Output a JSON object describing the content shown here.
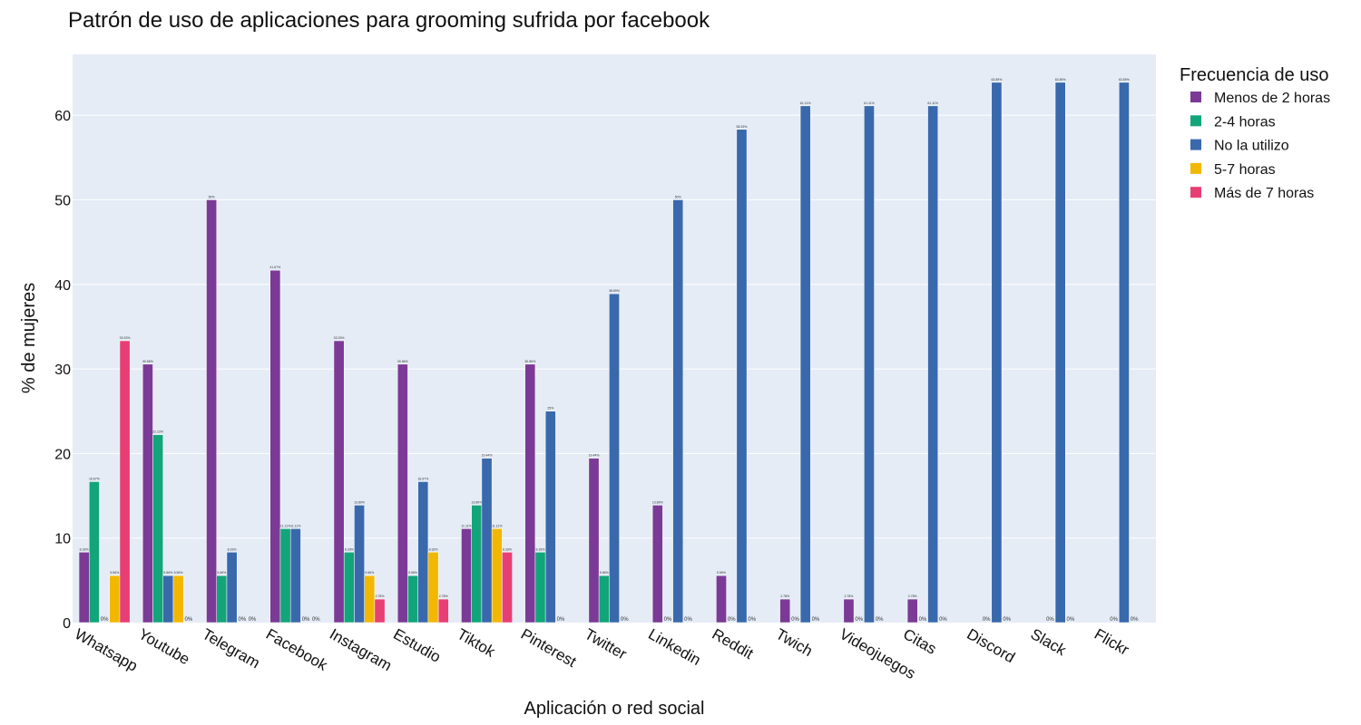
{
  "chart_data": {
    "type": "bar",
    "title": "Patrón de uso de aplicaciones para grooming sufrida por facebook",
    "xlabel": "Aplicación o red social",
    "ylabel": "% de mujeres",
    "ylim": [
      0,
      67.2
    ],
    "yticks": [
      0,
      10,
      20,
      30,
      40,
      50,
      60
    ],
    "grid": true,
    "legend_position": "right",
    "legend_title": "Frecuencia de uso",
    "categories": [
      "Whatsapp",
      "Youtube",
      "Telegram",
      "Facebook",
      "Instagram",
      "Estudio",
      "Tiktok",
      "Pinterest",
      "Twitter",
      "Linkedin",
      "Reddit",
      "Twich",
      "Videojuegos",
      "Citas",
      "Discord",
      "Slack",
      "Flickr"
    ],
    "series": [
      {
        "name": "Menos de 2 horas",
        "color": "#7B3A96",
        "values": [
          8.33,
          30.56,
          50,
          41.67,
          33.33,
          30.56,
          11.11,
          30.56,
          19.44,
          13.89,
          5.56,
          2.78,
          2.78,
          2.78,
          null,
          null,
          null
        ],
        "labels": [
          "8.33%",
          "30.56%",
          "50%",
          "41.67%",
          "33.33%",
          "30.56%",
          "11.11%",
          "30.56%",
          "19.44%",
          "13.89%",
          "5.56%",
          "2.78%",
          "2.78%",
          "2.78%",
          "",
          "",
          ""
        ]
      },
      {
        "name": "2-4 horas",
        "color": "#12A579",
        "values": [
          16.67,
          22.22,
          5.56,
          11.11,
          8.33,
          5.56,
          13.89,
          8.33,
          5.56,
          0,
          0,
          0,
          0,
          0,
          0,
          0,
          0
        ],
        "labels": [
          "16.67%",
          "22.22%",
          "5.56%",
          "11.11%",
          "8.33%",
          "5.56%",
          "13.89%",
          "8.33%",
          "5.56%",
          "0%",
          "0%",
          "0%",
          "0%",
          "0%",
          "0%",
          "0%",
          "0%"
        ]
      },
      {
        "name": "No la utilizo",
        "color": "#3969AC",
        "values": [
          0,
          5.56,
          8.33,
          11.11,
          13.89,
          16.67,
          19.44,
          25,
          38.89,
          50,
          58.33,
          61.11,
          61.11,
          61.11,
          63.89,
          63.89,
          63.89
        ],
        "labels": [
          "0%",
          "5.56%",
          "8.33%",
          "11.11%",
          "13.89%",
          "16.67%",
          "19.44%",
          "25%",
          "38.89%",
          "50%",
          "58.33%",
          "61.11%",
          "61.11%",
          "61.11%",
          "63.89%",
          "63.89%",
          "63.89%"
        ]
      },
      {
        "name": "5-7 horas",
        "color": "#F2B701",
        "values": [
          5.56,
          5.56,
          0,
          0,
          5.56,
          8.33,
          11.11,
          0,
          0,
          0,
          0,
          0,
          0,
          0,
          0,
          0,
          0
        ],
        "labels": [
          "5.56%",
          "5.56%",
          "0%",
          "0%",
          "5.56%",
          "8.33%",
          "11.11%",
          "0%",
          "0%",
          "0%",
          "0%",
          "0%",
          "0%",
          "0%",
          "0%",
          "0%",
          "0%"
        ]
      },
      {
        "name": "Más de 7 horas",
        "color": "#E73F74",
        "values": [
          33.33,
          0,
          0,
          0,
          2.78,
          2.78,
          8.33,
          null,
          null,
          null,
          null,
          null,
          null,
          null,
          null,
          null,
          null
        ],
        "labels": [
          "33.33%",
          "0%",
          "0%",
          "0%",
          "2.78%",
          "2.78%",
          "8.33%",
          "",
          "",
          "",
          "",
          "",
          "",
          "",
          "",
          "",
          ""
        ]
      }
    ]
  }
}
